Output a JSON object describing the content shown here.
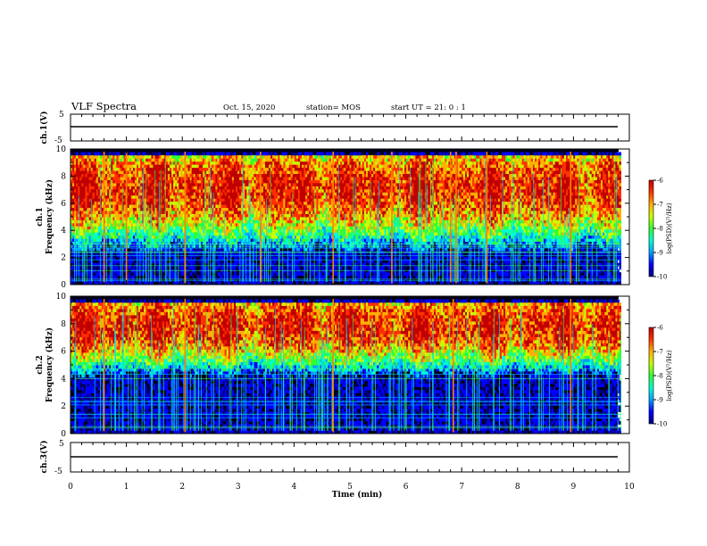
{
  "header": {
    "title": "VLF Spectra",
    "date": "Oct. 15, 2020",
    "station": "station= MOS",
    "start": "start  UT =   21: 0  : 1"
  },
  "colors": {
    "colormap": [
      "#00007a",
      "#0000ff",
      "#00a0ff",
      "#00ffd0",
      "#30ff30",
      "#c8ff00",
      "#ffb000",
      "#ff3000",
      "#c00000",
      "#ffffff"
    ],
    "background": "#ffffff",
    "spectrogram_floor": "#000018"
  },
  "chart_data": [
    {
      "type": "line",
      "name": "ch1-waveform",
      "ylabel": "ch.1(V)",
      "ylim": [
        -5,
        5
      ],
      "yticks": [
        "5",
        "-5"
      ],
      "xlim": [
        0,
        10
      ],
      "series": [
        {
          "values_description_free": true,
          "level": 0
        }
      ]
    },
    {
      "type": "heatmap",
      "name": "ch1-spectrogram",
      "ylabel_top": "ch.1",
      "ylabel": "Frequency (kHz)",
      "ylim": [
        0,
        10
      ],
      "yticks": [
        "0",
        "2",
        "4",
        "6",
        "8",
        "10"
      ],
      "xlim": [
        0,
        10
      ],
      "data_end_min": 9.85,
      "colorbar": {
        "label": "log(PSD)(V²/Hz)",
        "range": [
          -10,
          -6
        ],
        "ticks": [
          "-6",
          "-7",
          "-8",
          "-9",
          "-10"
        ]
      },
      "band_low_khz": 2.5,
      "band_high_khz": 9.5,
      "strong_sferics_min": [
        0.6,
        1.0,
        2.05,
        3.4,
        4.7,
        5.75,
        6.8,
        6.9,
        7.45,
        8.95
      ]
    },
    {
      "type": "heatmap",
      "name": "ch2-spectrogram",
      "ylabel_top": "ch.2",
      "ylabel": "Frequency (kHz)",
      "ylim": [
        0,
        10
      ],
      "yticks": [
        "0",
        "2",
        "4",
        "6",
        "8",
        "10"
      ],
      "xlim": [
        0,
        10
      ],
      "data_end_min": 9.85,
      "colorbar": {
        "label": "log(PSD)(V²/Hz)",
        "range": [
          -10,
          -6
        ],
        "ticks": [
          "-6",
          "-7",
          "-8",
          "-9",
          "-10"
        ]
      },
      "band_low_khz": 4.0,
      "band_high_khz": 9.5,
      "strong_sferics_min": [
        0.6,
        2.05,
        4.7,
        6.85,
        8.95
      ]
    },
    {
      "type": "line",
      "name": "ch3-waveform",
      "ylabel": "ch.3(V)",
      "ylim": [
        -5,
        5
      ],
      "yticks": [
        "5",
        "-5"
      ],
      "xlim": [
        0,
        10
      ],
      "xlabel": "Time (min)",
      "xticks": [
        "0",
        "1",
        "2",
        "3",
        "4",
        "5",
        "6",
        "7",
        "8",
        "9",
        "10"
      ],
      "series": [
        {
          "level": 0
        }
      ]
    }
  ]
}
